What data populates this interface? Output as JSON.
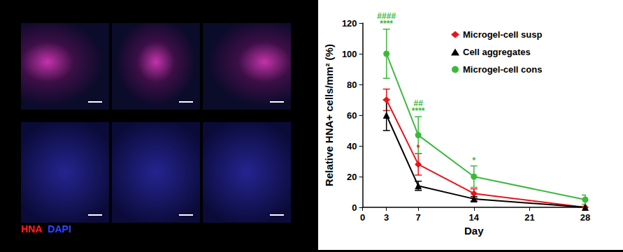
{
  "chart_data": {
    "type": "line",
    "y_label": "Relative HNA+ cells/mm² (%)",
    "x_label": "Day",
    "xlim": [
      0,
      28
    ],
    "xticks": [
      0,
      3,
      7,
      14,
      21,
      28
    ],
    "ylim": [
      0,
      120
    ],
    "yticks": [
      0,
      20,
      40,
      60,
      80,
      100,
      120
    ],
    "grid": false,
    "legend": "upper right",
    "series": [
      {
        "name": "Microgel-cell susp",
        "color": "#e8141a",
        "marker": "diamond",
        "line_style": "solid",
        "x": [
          3,
          7,
          14,
          28
        ],
        "values": [
          70,
          28,
          9,
          0
        ],
        "errors": [
          7,
          7,
          3,
          0.5
        ]
      },
      {
        "name": "Cell aggregates",
        "color": "#000000",
        "marker": "triangle",
        "line_style": "solid",
        "x": [
          3,
          7,
          14,
          28
        ],
        "values": [
          60,
          14,
          5.5,
          0
        ],
        "errors": [
          10,
          3,
          1.5,
          0
        ]
      },
      {
        "name": "Microgel-cell cons",
        "color": "#3cb93c",
        "marker": "circle",
        "line_style": "solid",
        "x": [
          3,
          7,
          14,
          28
        ],
        "values": [
          100,
          47,
          20,
          5
        ],
        "errors": [
          16,
          12,
          7,
          3
        ]
      }
    ],
    "annotations": [
      {
        "text": "****",
        "series": "Microgel-cell cons",
        "x": 3,
        "color": "#3cb93c"
      },
      {
        "text": "####",
        "series": "Microgel-cell cons",
        "x": 3,
        "color": "#3cb93c"
      },
      {
        "text": "****",
        "series": "Microgel-cell cons",
        "x": 7,
        "color": "#3cb93c"
      },
      {
        "text": "##",
        "series": "Microgel-cell cons",
        "x": 7,
        "color": "#3cb93c"
      },
      {
        "text": "*",
        "series": "Microgel-cell susp",
        "x": 7,
        "color": "#e8141a"
      },
      {
        "text": "*",
        "series": "Microgel-cell cons",
        "x": 14,
        "color": "#3cb93c"
      }
    ],
    "image_labels": [
      {
        "text": "HNA",
        "color": "#ff2020"
      },
      {
        "text": "DAPI",
        "color": "#3344ff"
      }
    ]
  }
}
